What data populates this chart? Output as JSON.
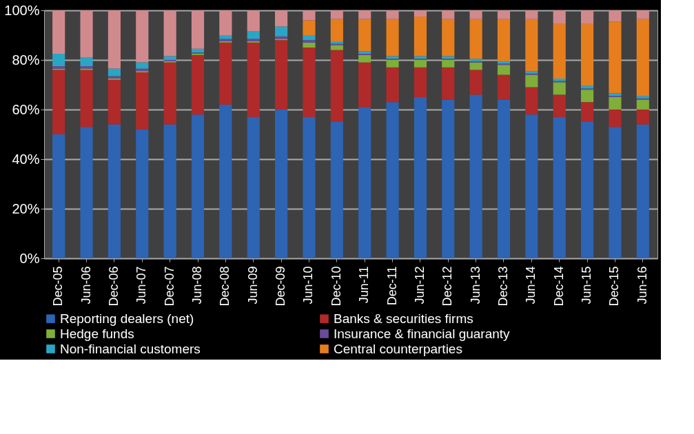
{
  "chart_data": {
    "type": "bar",
    "stacked": true,
    "grid": "y",
    "legend": "bottom",
    "categories": [
      "Dec-05",
      "Jun-06",
      "Dec-06",
      "Jun-07",
      "Dec-07",
      "Jun-08",
      "Dec-08",
      "Jun-09",
      "Dec-09",
      "Jun-10",
      "Dec-10",
      "Jun-11",
      "Dec-11",
      "Jun-12",
      "Dec-12",
      "Jun-13",
      "Dec-13",
      "Jun-14",
      "Dec-14",
      "Jun-15",
      "Dec-15",
      "Jun-16"
    ],
    "ylim": [
      0,
      100
    ],
    "yticks": [
      {
        "value": 0,
        "label": "0%"
      },
      {
        "value": 20,
        "label": "20%"
      },
      {
        "value": 40,
        "label": "40%"
      },
      {
        "value": 60,
        "label": "60%"
      },
      {
        "value": 80,
        "label": "80%"
      },
      {
        "value": 100,
        "label": "100%"
      }
    ],
    "series": [
      {
        "name": "Reporting dealers (net)",
        "color": "#2e64b4",
        "values": [
          50,
          53,
          54,
          52,
          54,
          58,
          62,
          57,
          60,
          57,
          55,
          61,
          63,
          65,
          64,
          66,
          64,
          58,
          57,
          55,
          53,
          54
        ]
      },
      {
        "name": "Banks & securities firms",
        "color": "#b02a2a",
        "values": [
          26,
          23,
          18,
          23,
          25,
          24,
          25,
          30,
          28,
          28,
          29,
          18,
          14,
          12,
          13,
          10,
          10,
          11,
          9,
          8,
          7,
          6
        ]
      },
      {
        "name": "Hedge funds",
        "color": "#7fae3a",
        "values": [
          0.5,
          0.5,
          0.5,
          0.5,
          0.5,
          0.5,
          0.5,
          0.5,
          0.5,
          2,
          2,
          3,
          3,
          3,
          3,
          3,
          4,
          5,
          5,
          5,
          5,
          4
        ]
      },
      {
        "name": "Insurance & financial guaranty",
        "color": "#6a4a9a",
        "values": [
          1,
          1,
          1,
          1,
          0.5,
          0.5,
          1,
          1,
          1,
          1,
          0.5,
          0.5,
          0.5,
          0.5,
          0.5,
          0.5,
          0.5,
          0.5,
          0.5,
          0.5,
          0.5,
          0.5
        ]
      },
      {
        "name": "Non-financial customers",
        "color": "#2aa6c4",
        "values": [
          5,
          3.5,
          3,
          2.5,
          1.5,
          1.5,
          1.5,
          3,
          4,
          2,
          1,
          1,
          1,
          1,
          1,
          1,
          1,
          1,
          1,
          1,
          1,
          1
        ]
      },
      {
        "name": "Central counterparties",
        "color": "#e67e1e",
        "values": [
          0,
          0,
          0,
          0,
          0,
          0,
          0,
          0,
          0,
          6,
          9,
          13,
          15,
          16,
          15,
          16,
          17,
          21,
          22,
          25,
          29,
          31
        ]
      },
      {
        "color": "#d08a8e",
        "values": [
          17.5,
          19,
          23.5,
          21,
          18.5,
          15.5,
          10,
          8.5,
          6.5,
          4,
          3.5,
          3.5,
          3.5,
          2.5,
          3.5,
          3.5,
          3.5,
          3.5,
          5.5,
          5.5,
          4.5,
          3.5
        ]
      }
    ]
  }
}
